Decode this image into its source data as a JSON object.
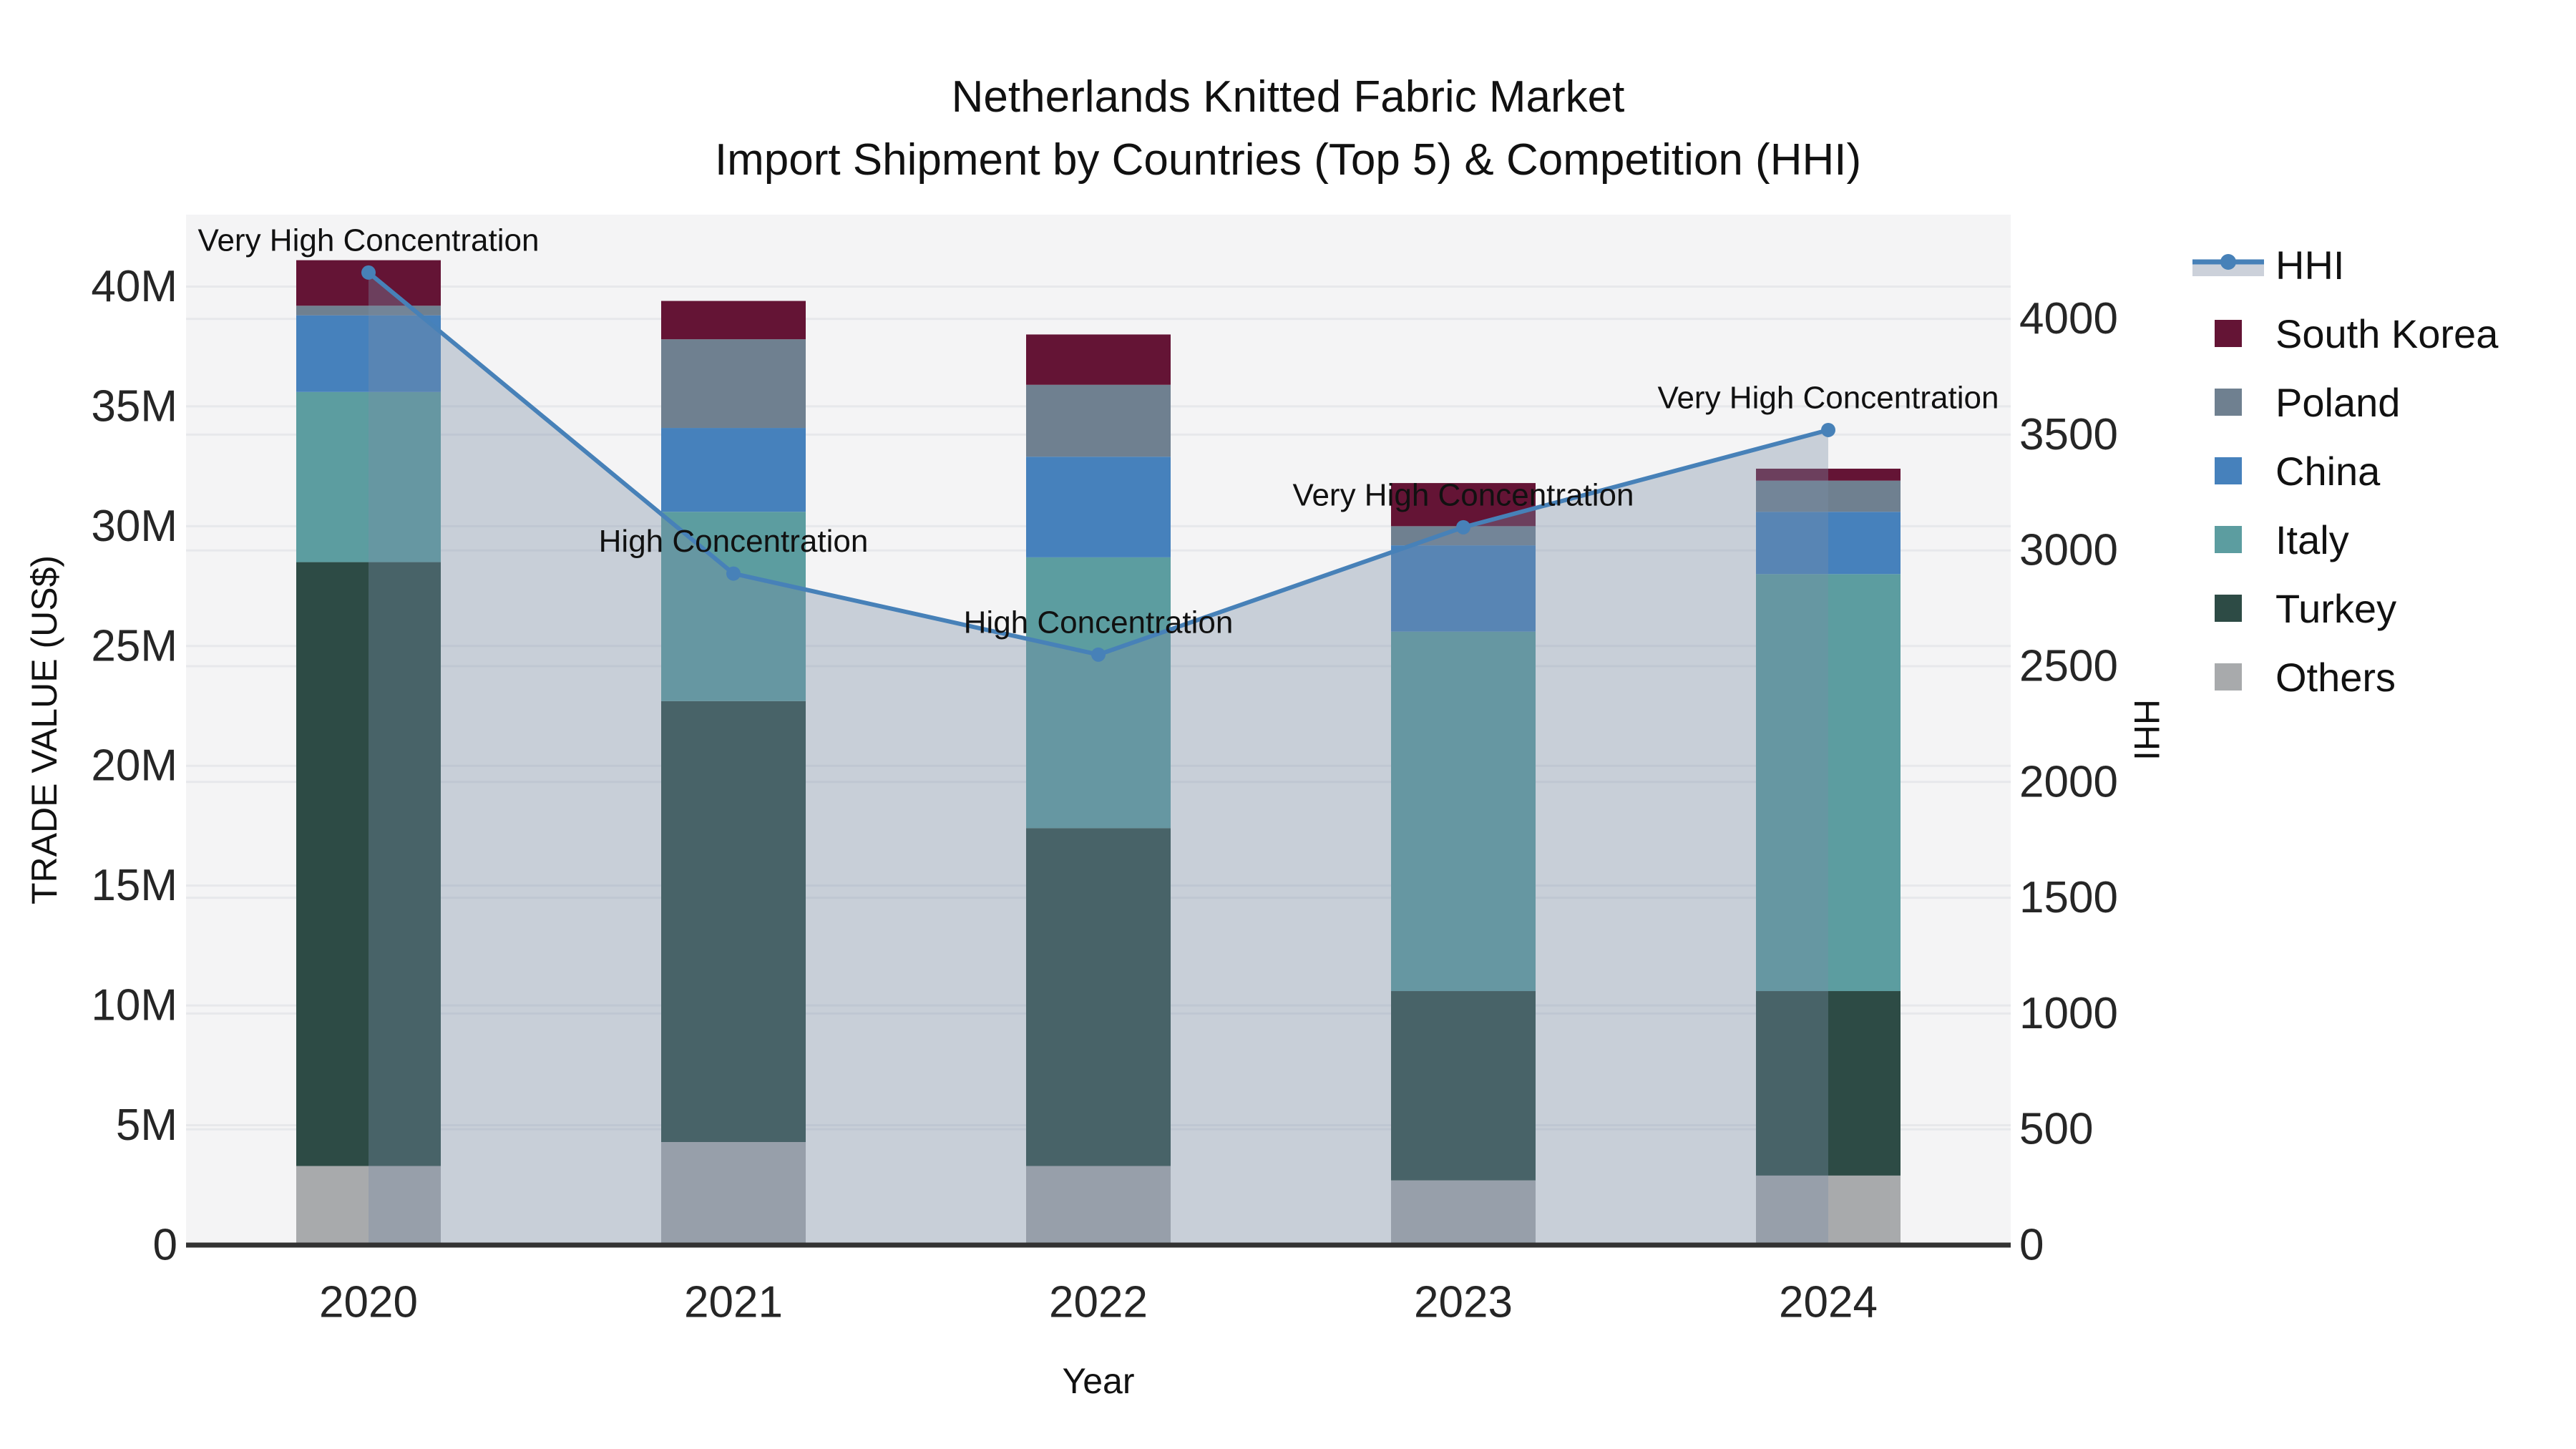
{
  "title": {
    "line1": "Netherlands Knitted Fabric Market",
    "line2": "Import Shipment by Countries (Top 5) & Competition (HHI)"
  },
  "axes": {
    "y_left": {
      "title": "TRADE VALUE (US$)",
      "unit": "US$ millions",
      "max": 43,
      "ticks": [
        {
          "v": 0,
          "label": "0"
        },
        {
          "v": 5,
          "label": "5M"
        },
        {
          "v": 10,
          "label": "10M"
        },
        {
          "v": 15,
          "label": "15M"
        },
        {
          "v": 20,
          "label": "20M"
        },
        {
          "v": 25,
          "label": "25M"
        },
        {
          "v": 30,
          "label": "30M"
        },
        {
          "v": 35,
          "label": "35M"
        },
        {
          "v": 40,
          "label": "40M"
        }
      ]
    },
    "y_right": {
      "title": "HHI",
      "max": 4450,
      "ticks": [
        {
          "v": 0,
          "label": "0"
        },
        {
          "v": 500,
          "label": "500"
        },
        {
          "v": 1000,
          "label": "1000"
        },
        {
          "v": 1500,
          "label": "1500"
        },
        {
          "v": 2000,
          "label": "2000"
        },
        {
          "v": 2500,
          "label": "2500"
        },
        {
          "v": 3000,
          "label": "3000"
        },
        {
          "v": 3500,
          "label": "3500"
        },
        {
          "v": 4000,
          "label": "4000"
        }
      ]
    },
    "x": {
      "title": "Year"
    }
  },
  "chart_data": {
    "type": "bar",
    "subtype": "stacked-bar-with-line",
    "categories": [
      "2020",
      "2021",
      "2022",
      "2023",
      "2024"
    ],
    "values_unit": "US$ millions",
    "series": [
      {
        "name": "Others",
        "color": "#a8aaac",
        "values": [
          3.3,
          4.3,
          3.3,
          2.7,
          2.9
        ]
      },
      {
        "name": "Turkey",
        "color": "#2d4b45",
        "values": [
          25.2,
          18.4,
          14.1,
          7.9,
          7.7
        ]
      },
      {
        "name": "Italy",
        "color": "#5c9da0",
        "values": [
          7.1,
          7.9,
          11.3,
          15.0,
          17.4
        ]
      },
      {
        "name": "China",
        "color": "#4681bc",
        "values": [
          3.2,
          3.5,
          4.2,
          3.6,
          2.6
        ]
      },
      {
        "name": "Poland",
        "color": "#6f8090",
        "values": [
          0.4,
          3.7,
          3.0,
          0.8,
          1.3
        ]
      },
      {
        "name": "South Korea",
        "color": "#641435",
        "values": [
          1.9,
          1.6,
          2.1,
          1.8,
          0.5
        ]
      }
    ],
    "line": {
      "name": "HHI",
      "axis": "right",
      "color": "#4781b8",
      "area_fill": "rgba(123,140,166,0.36)",
      "values": [
        4200,
        2900,
        2550,
        3100,
        3520
      ]
    },
    "annotations": [
      {
        "category": "2020",
        "label": "Very High Concentration"
      },
      {
        "category": "2021",
        "label": "High Concentration"
      },
      {
        "category": "2022",
        "label": "High Concentration"
      },
      {
        "category": "2023",
        "label": "Very High Concentration"
      },
      {
        "category": "2024",
        "label": "Very High Concentration"
      }
    ],
    "layout_hints": {
      "plot_bg": "#f4f4f5",
      "grid_color": "#e7e8eb",
      "axis_line_color": "#333333",
      "legend_position": "right",
      "grid": "on"
    }
  },
  "legend": {
    "items": [
      {
        "label": "HHI",
        "series": "HHI"
      },
      {
        "label": "South Korea",
        "series": "South Korea"
      },
      {
        "label": "Poland",
        "series": "Poland"
      },
      {
        "label": "China",
        "series": "China"
      },
      {
        "label": "Italy",
        "series": "Italy"
      },
      {
        "label": "Turkey",
        "series": "Turkey"
      },
      {
        "label": "Others",
        "series": "Others"
      }
    ]
  }
}
